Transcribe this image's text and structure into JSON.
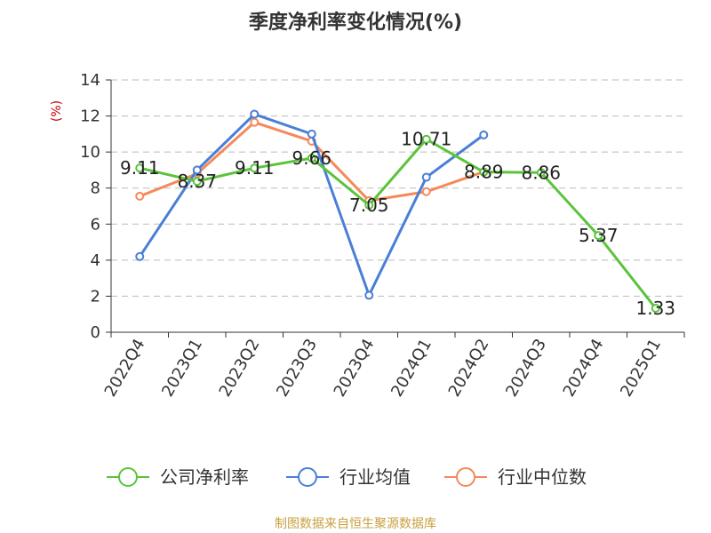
{
  "chart_data": {
    "type": "line",
    "title": "季度净利率变化情况(%)",
    "ylabel": "(%)",
    "xlabel": "",
    "ylim": [
      0,
      14
    ],
    "yticks": [
      0,
      2,
      4,
      6,
      8,
      10,
      12,
      14
    ],
    "grid": true,
    "legend_position": "bottom",
    "categories": [
      "2022Q4",
      "2023Q1",
      "2023Q2",
      "2023Q3",
      "2023Q4",
      "2024Q1",
      "2024Q2",
      "2024Q3",
      "2024Q4",
      "2025Q1"
    ],
    "series": [
      {
        "name": "公司净利率",
        "color": "#5ac43a",
        "values": [
          9.11,
          8.37,
          9.11,
          9.66,
          7.05,
          10.71,
          8.89,
          8.86,
          5.37,
          1.33
        ],
        "labels": [
          "9.11",
          "8.37",
          "9.11",
          "9.66",
          "7.05",
          "10.71",
          "8.89",
          "8.86",
          "5.37",
          "1.33"
        ]
      },
      {
        "name": "行业均值",
        "color": "#4a7fd8",
        "values": [
          4.2,
          9.0,
          12.1,
          11.0,
          2.05,
          8.6,
          10.95,
          null,
          null,
          null
        ]
      },
      {
        "name": "行业中位数",
        "color": "#f5895a",
        "values": [
          7.55,
          8.8,
          11.65,
          10.6,
          7.3,
          7.8,
          8.9,
          null,
          null,
          null
        ]
      }
    ],
    "source": "制图数据来自恒生聚源数据库"
  }
}
